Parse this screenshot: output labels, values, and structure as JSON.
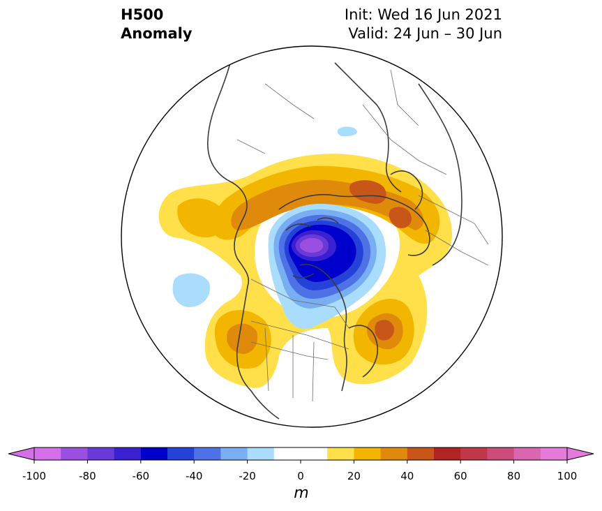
{
  "title": {
    "line1": "H500",
    "line2": "Anomaly"
  },
  "info": {
    "init": "Init: Wed 16 Jun 2021",
    "valid": "Valid: 24 Jun – 30 Jun"
  },
  "colorbar": {
    "units": "m",
    "ticks": [
      "-100",
      "-80",
      "-60",
      "-40",
      "-20",
      "0",
      "20",
      "40",
      "60",
      "80",
      "100"
    ],
    "levels": [
      -100,
      -90,
      -80,
      -70,
      -60,
      -50,
      -40,
      -30,
      -20,
      -10,
      10,
      20,
      30,
      40,
      50,
      60,
      70,
      80,
      90,
      100
    ],
    "colors": [
      "#d36fe8",
      "#9a4fe0",
      "#6a3ad8",
      "#3a20d0",
      "#0000cc",
      "#2442d8",
      "#4e72e6",
      "#7aaef2",
      "#aadcfc",
      "#ffffff",
      "#ffe04a",
      "#f2b600",
      "#e08a0c",
      "#c85618",
      "#b02424",
      "#c03848",
      "#cc4c7c",
      "#d866b0",
      "#e47ada"
    ],
    "extend_low_color": "#d36fe8",
    "extend_high_color": "#e47ada"
  },
  "map": {
    "projection": "north-polar-stereographic",
    "anomaly_features": [
      {
        "sign": "negative",
        "region": "Arctic / Canadian Archipelago",
        "peak_m": -85
      },
      {
        "sign": "negative",
        "region": "North Pacific",
        "peak_m": -15
      },
      {
        "sign": "negative",
        "region": "Kara Sea",
        "peak_m": -15
      },
      {
        "sign": "positive",
        "region": "Western North America",
        "peak_m": 40
      },
      {
        "sign": "positive",
        "region": "Northeast Canada / North Atlantic",
        "peak_m": 55
      },
      {
        "sign": "positive",
        "region": "Siberia",
        "peak_m": 50
      },
      {
        "sign": "positive",
        "region": "Northern Europe",
        "peak_m": 50
      },
      {
        "sign": "positive",
        "region": "Western Siberia",
        "peak_m": 35
      }
    ]
  }
}
